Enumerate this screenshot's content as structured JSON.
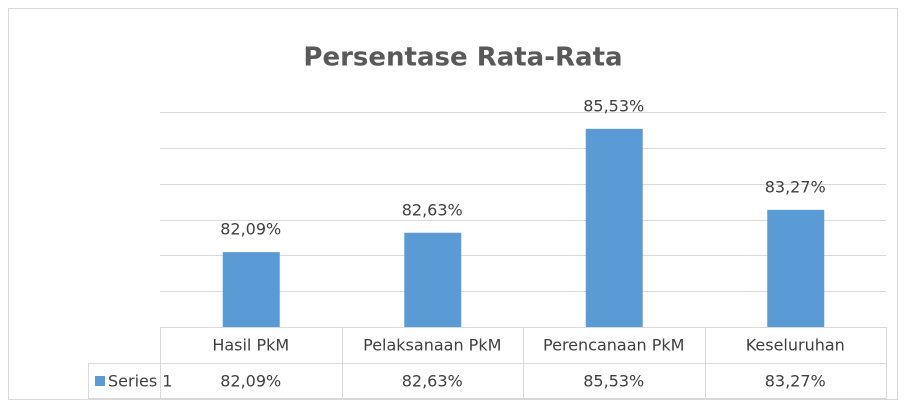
{
  "chart_data": {
    "type": "bar",
    "title": "Persentase Rata-Rata",
    "categories": [
      "Hasil PkM",
      "Pelaksanaan PkM",
      "Perencanaan PkM",
      "Keseluruhan"
    ],
    "series": [
      {
        "name": "Series 1",
        "color": "#5b9bd5",
        "values": [
          82.09,
          82.63,
          85.53,
          83.27
        ],
        "value_labels": [
          "82,09%",
          "82,63%",
          "85,53%",
          "83,27%"
        ]
      }
    ],
    "ylim": [
      80,
      86
    ],
    "yticks": [
      80,
      81,
      82,
      83,
      84,
      85,
      86
    ],
    "grid": true
  }
}
